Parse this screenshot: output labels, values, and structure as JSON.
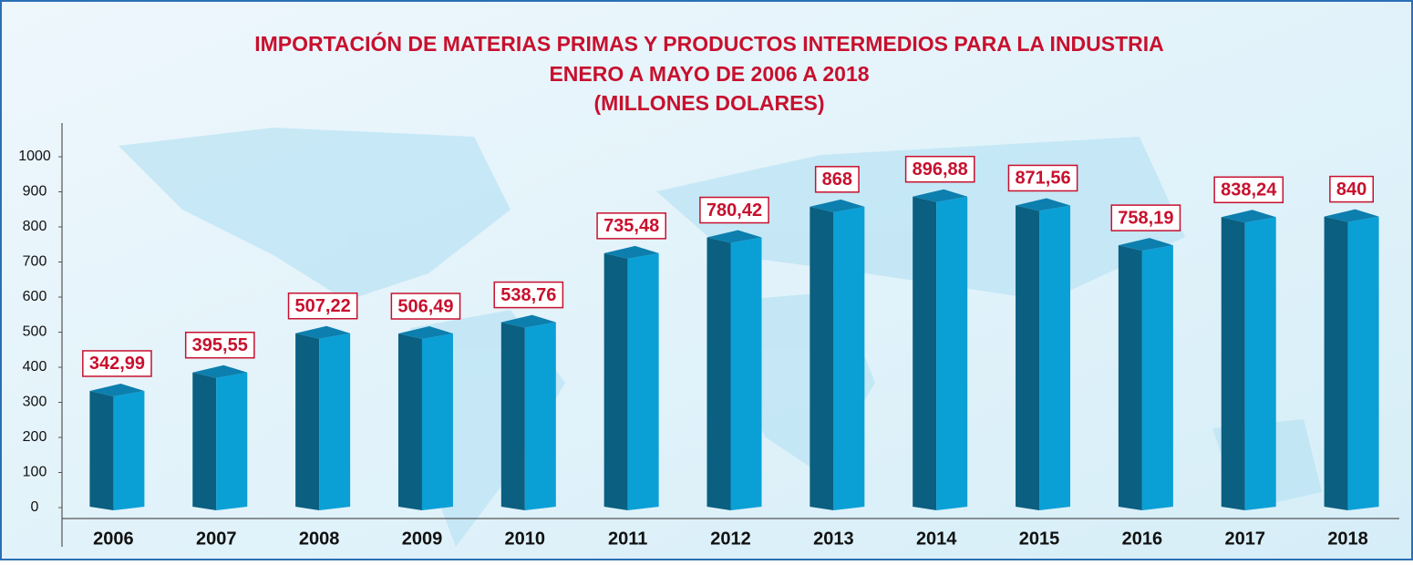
{
  "chart_data": {
    "type": "bar3d",
    "title": "IMPORTACIÓN DE MATERIAS PRIMAS Y PRODUCTOS INTERMEDIOS PARA LA INDUSTRIA",
    "subtitle": "ENERO A MAYO DE 2006 A 2018",
    "unit_label": "(MILLONES DOLARES)",
    "categories": [
      "2006",
      "2007",
      "2008",
      "2009",
      "2010",
      "2011",
      "2012",
      "2013",
      "2014",
      "2015",
      "2016",
      "2017",
      "2018"
    ],
    "values": [
      342.99,
      395.55,
      507.22,
      506.49,
      538.76,
      735.48,
      780.42,
      868,
      896.88,
      871.56,
      758.19,
      838.24,
      840
    ],
    "value_labels": [
      "342,99",
      "395,55",
      "507,22",
      "506,49",
      "538,76",
      "735,48",
      "780,42",
      "868",
      "896,88",
      "871,56",
      "758,19",
      "838,24",
      "840"
    ],
    "colors": {
      "front": "#0b5f80",
      "side": "#0aa0d6",
      "top": "#0c7fae",
      "label": "#c8102e"
    },
    "ylim": [
      0,
      1000
    ],
    "yticks": [
      0,
      100,
      200,
      300,
      400,
      500,
      600,
      700,
      800,
      900,
      1000
    ],
    "grid": false
  }
}
